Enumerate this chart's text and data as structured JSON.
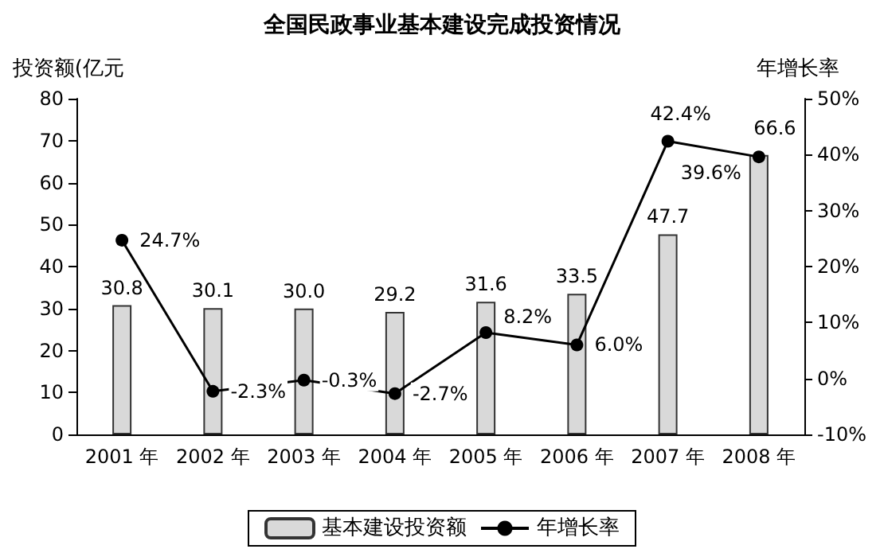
{
  "chart_data": {
    "type": "bar",
    "title": "全国民政事业基本建设完成投资情况",
    "ylabel": "投资额(亿元",
    "y2label": "年增长率",
    "categories": [
      "2001 年",
      "2002 年",
      "2003 年",
      "2004 年",
      "2005 年",
      "2006 年",
      "2007 年",
      "2008 年"
    ],
    "series": [
      {
        "name": "基本建设投资额",
        "color": "#d9d9d9",
        "values": [
          30.8,
          30.1,
          30.0,
          29.2,
          31.6,
          33.5,
          47.7,
          66.6
        ],
        "value_labels": [
          "30.8",
          "30.1",
          "30.0",
          "29.2",
          "31.6",
          "33.5",
          "47.7",
          "66.6"
        ]
      },
      {
        "name": "年增长率",
        "type": "line",
        "axis": "y2",
        "color": "#000000",
        "values": [
          24.7,
          -2.3,
          -0.3,
          -2.7,
          8.2,
          6.0,
          42.4,
          39.6
        ],
        "value_labels": [
          "24.7%",
          "-2.3%",
          "-0.3%",
          "-2.7%",
          "8.2%",
          "6.0%",
          "42.4%",
          "39.6%"
        ]
      }
    ],
    "ylim": [
      0,
      80
    ],
    "yticks": [
      0,
      10,
      20,
      30,
      40,
      50,
      60,
      70,
      80
    ],
    "y2lim": [
      -10,
      50
    ],
    "y2ticks": [
      {
        "value": -10,
        "label": "-10%"
      },
      {
        "value": 0,
        "label": "0%"
      },
      {
        "value": 10,
        "label": "10%"
      },
      {
        "value": 20,
        "label": "20%"
      },
      {
        "value": 30,
        "label": "30%"
      },
      {
        "value": 40,
        "label": "40%"
      },
      {
        "value": 50,
        "label": "50%"
      }
    ],
    "grid": false,
    "legend": "bottom",
    "marker": "circle",
    "line_style": "solid"
  }
}
